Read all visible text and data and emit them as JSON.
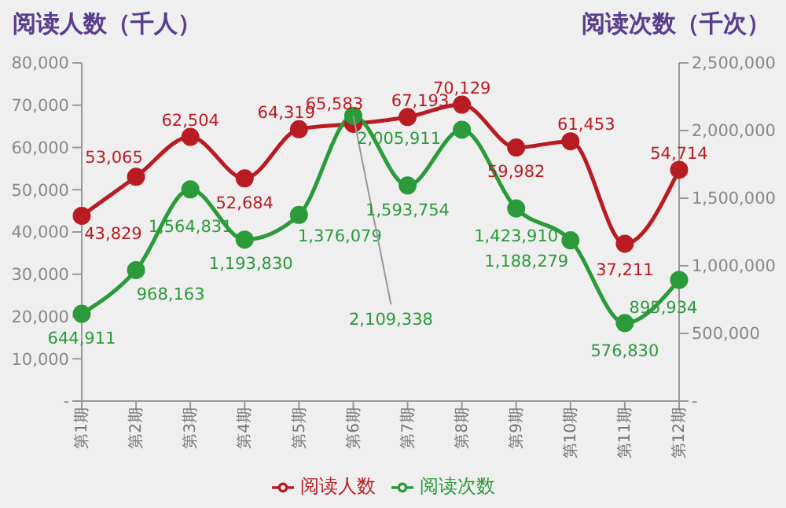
{
  "chart_data": {
    "type": "line",
    "ylabel": "阅读人数（千人）",
    "y2label": "阅读次数（千次）",
    "categories": [
      "第1期",
      "第2期",
      "第3期",
      "第4期",
      "第5期",
      "第6期",
      "第7期",
      "第8期",
      "第9期",
      "第10期",
      "第11期",
      "第12期"
    ],
    "series": [
      {
        "name": "阅读人数",
        "color": "#b81c22",
        "values": [
          43829,
          53065,
          62504,
          52684,
          64319,
          65583,
          67193,
          70129,
          59982,
          61453,
          37211,
          54714
        ],
        "value_labels": [
          "43,829",
          "53,065",
          "62,504",
          "52,684",
          "64,319",
          "65,583",
          "67,193",
          "70,129",
          "59,982",
          "61,453",
          "37,211",
          "54,714"
        ]
      },
      {
        "name": "阅读次数",
        "color": "#2a9a3a",
        "axis": "y2",
        "values": [
          644911,
          968163,
          1564831,
          1193830,
          1376079,
          2109338,
          1593754,
          2005911,
          1423910,
          1188279,
          576830,
          895934
        ],
        "value_labels": [
          "644,911",
          "968,163",
          "1,564,831",
          "1,193,830",
          "1,376,079",
          "2,109,338",
          "1,593,754",
          "2,005,911",
          "1,423,910",
          "1,188,279",
          "576,830",
          "895,934"
        ]
      }
    ],
    "ylim": [
      0,
      80000
    ],
    "yticks": [
      {
        "value": 0,
        "label": "-"
      },
      {
        "value": 10000,
        "label": "10,000"
      },
      {
        "value": 20000,
        "label": "20,000"
      },
      {
        "value": 30000,
        "label": "30,000"
      },
      {
        "value": 40000,
        "label": "40,000"
      },
      {
        "value": 50000,
        "label": "50,000"
      },
      {
        "value": 60000,
        "label": "60,000"
      },
      {
        "value": 70000,
        "label": "70,000"
      },
      {
        "value": 80000,
        "label": "80,000"
      }
    ],
    "y2lim": [
      0,
      2500000
    ],
    "y2ticks": [
      {
        "value": 0,
        "label": "-"
      },
      {
        "value": 500000,
        "label": "500,000"
      },
      {
        "value": 1000000,
        "label": "1,000,000"
      },
      {
        "value": 1500000,
        "label": "1,500,000"
      },
      {
        "value": 2000000,
        "label": "2,000,000"
      },
      {
        "value": 2500000,
        "label": "2,500,000"
      }
    ],
    "marker": "circle",
    "line_style": "solid",
    "legend": "bottom",
    "grid": false
  }
}
